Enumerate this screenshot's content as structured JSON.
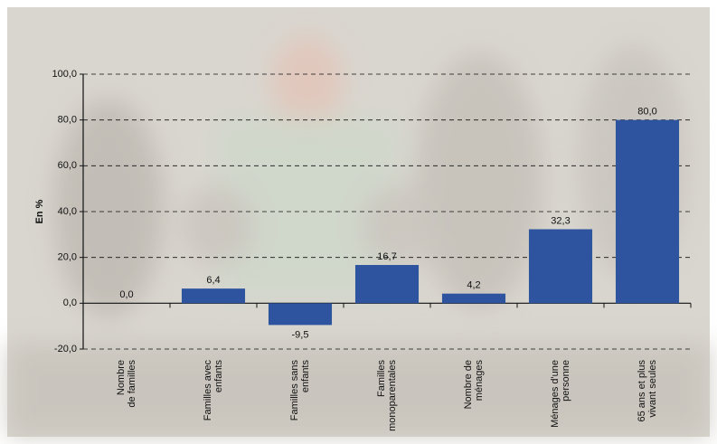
{
  "chart_data": {
    "type": "bar",
    "y_label": "En %",
    "categories": [
      [
        "Nombre",
        "de familles"
      ],
      [
        "Familles avec",
        "enfants"
      ],
      [
        "Familles sans",
        "enfants"
      ],
      [
        "Familles",
        "monoparentales"
      ],
      [
        "Nombre de",
        "ménages"
      ],
      [
        "Ménages d'une",
        "personne"
      ],
      [
        "65 ans et plus",
        "vivant seules"
      ]
    ],
    "values": [
      0.0,
      6.4,
      -9.5,
      16.7,
      4.2,
      32.3,
      80.0
    ],
    "value_labels": [
      "0,0",
      "6,4",
      "-9,5",
      "16,7",
      "4,2",
      "32,3",
      "80,0"
    ],
    "color": "#2e54a0",
    "ylim": [
      -20,
      100
    ],
    "yticks": [
      {
        "value": -20,
        "label": "-20,0"
      },
      {
        "value": 0,
        "label": "0,0"
      },
      {
        "value": 20,
        "label": "20,0"
      },
      {
        "value": 40,
        "label": "40,0"
      },
      {
        "value": 60,
        "label": "60,0"
      },
      {
        "value": 80,
        "label": "80,0"
      },
      {
        "value": 100,
        "label": "100,0"
      }
    ],
    "grid": true
  }
}
